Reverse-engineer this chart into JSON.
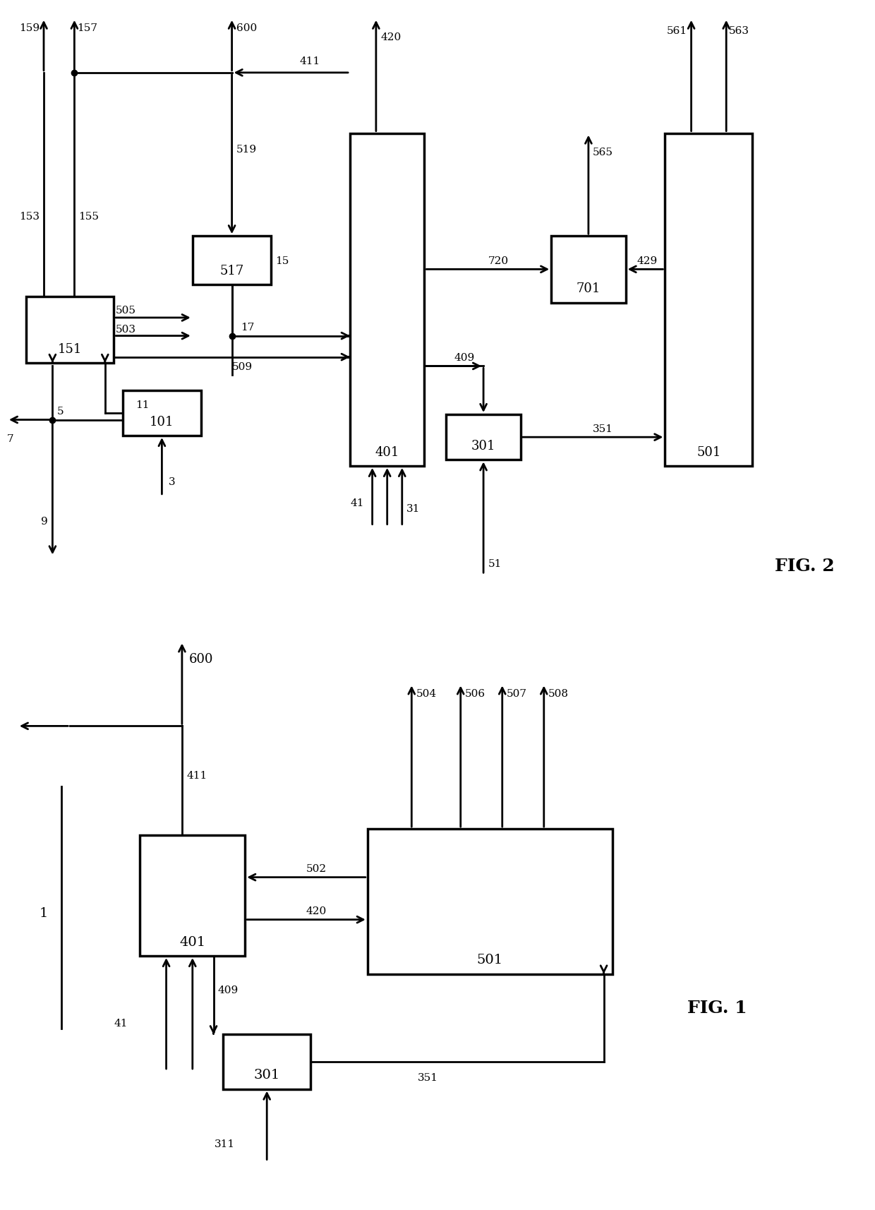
{
  "bg": "#ffffff",
  "lc": "#000000",
  "lw": 2.0,
  "blw": 2.5,
  "arrowscale": 16
}
